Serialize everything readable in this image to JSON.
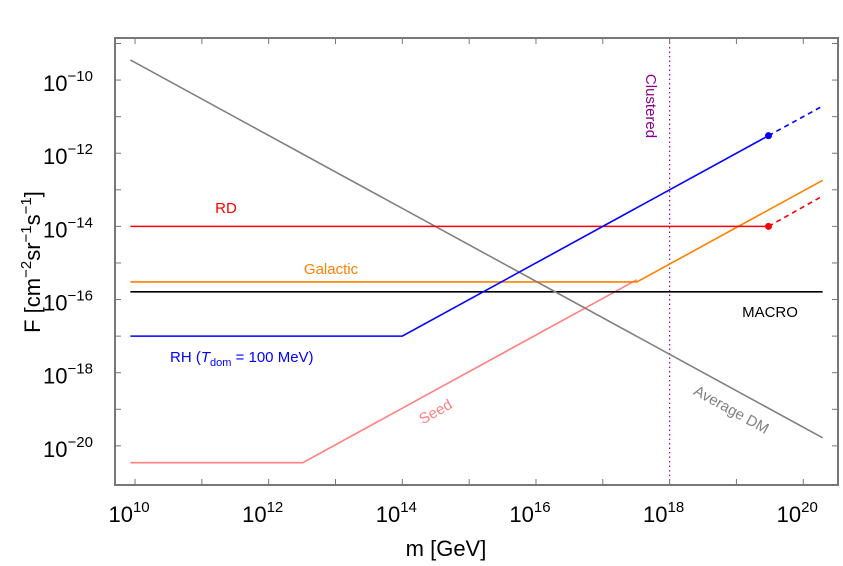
{
  "chart_data": {
    "type": "line",
    "xlabel": "m [GeV]",
    "ylabel_parts": {
      "base": "F [cm",
      "e1": "−2",
      "mid1": "sr",
      "e2": "−1",
      "mid2": "s",
      "e3": "−1",
      "end": "]"
    },
    "x_scale": "log",
    "y_scale": "log",
    "xlim_log10": [
      9.7,
      20.52
    ],
    "ylim_log10": [
      -21.07,
      -8.85
    ],
    "x_ticks": [
      {
        "base": "10",
        "exp": "10",
        "v": 10
      },
      {
        "base": "10",
        "exp": "12",
        "v": 12
      },
      {
        "base": "10",
        "exp": "14",
        "v": 14
      },
      {
        "base": "10",
        "exp": "16",
        "v": 16
      },
      {
        "base": "10",
        "exp": "18",
        "v": 18
      },
      {
        "base": "10",
        "exp": "20",
        "v": 20
      }
    ],
    "y_ticks": [
      {
        "base": "10",
        "exp": "−10",
        "v": -10
      },
      {
        "base": "10",
        "exp": "−12",
        "v": -12
      },
      {
        "base": "10",
        "exp": "−14",
        "v": -14
      },
      {
        "base": "10",
        "exp": "−16",
        "v": -16
      },
      {
        "base": "10",
        "exp": "−18",
        "v": -18
      },
      {
        "base": "10",
        "exp": "−20",
        "v": -20
      }
    ],
    "grid": false,
    "series": [
      {
        "key": "seed",
        "name": "Seed",
        "color": "#ff8080",
        "points_log10": [
          [
            9.93,
            -20.46
          ],
          [
            12.51,
            -20.46
          ],
          [
            17.51,
            -15.46
          ]
        ]
      },
      {
        "key": "galactic",
        "name": "Galactic",
        "color": "#ff8000",
        "points_log10": [
          [
            9.93,
            -15.52
          ],
          [
            17.51,
            -15.52
          ],
          [
            20.29,
            -12.74
          ]
        ]
      },
      {
        "key": "macro",
        "name": "MACRO",
        "color": "#000000",
        "points_log10": [
          [
            9.93,
            -15.79
          ],
          [
            20.29,
            -15.79
          ]
        ]
      },
      {
        "key": "avgdm",
        "name": "Average DM",
        "color": "#808080",
        "points_log10": [
          [
            9.93,
            -9.45
          ],
          [
            20.29,
            -19.78
          ]
        ]
      },
      {
        "key": "rd",
        "name": "RD",
        "color": "#ff0000",
        "points_log10": [
          [
            9.93,
            -14.0
          ],
          [
            19.48,
            -14.0
          ]
        ],
        "dashed_extension_log10": [
          [
            19.48,
            -14.0
          ],
          [
            20.29,
            -13.17
          ]
        ],
        "marker_log10": [
          19.48,
          -14.0
        ]
      },
      {
        "key": "rh",
        "name": "RH",
        "color": "#0000ff",
        "points_log10": [
          [
            9.93,
            -17.0
          ],
          [
            14.0,
            -17.0
          ],
          [
            19.48,
            -11.52
          ]
        ],
        "dashed_extension_log10": [
          [
            19.48,
            -11.52
          ],
          [
            20.29,
            -10.71
          ]
        ],
        "marker_log10": [
          19.48,
          -11.52
        ]
      }
    ],
    "vertical_line": {
      "name": "Clustered",
      "x_log10": 18,
      "color": "#b000b0",
      "style": "dotted"
    },
    "annotations": {
      "rd": "RD",
      "galactic": "Galactic",
      "macro": "MACRO",
      "rh_prefix": "RH (",
      "rh_T": "T",
      "rh_sub": "dom",
      "rh_suffix": " = 100 MeV)",
      "seed": "Seed",
      "avgdm": "Average DM",
      "clustered": "Clustered"
    },
    "annotation_colors": {
      "clustered": "#8b008b"
    }
  }
}
